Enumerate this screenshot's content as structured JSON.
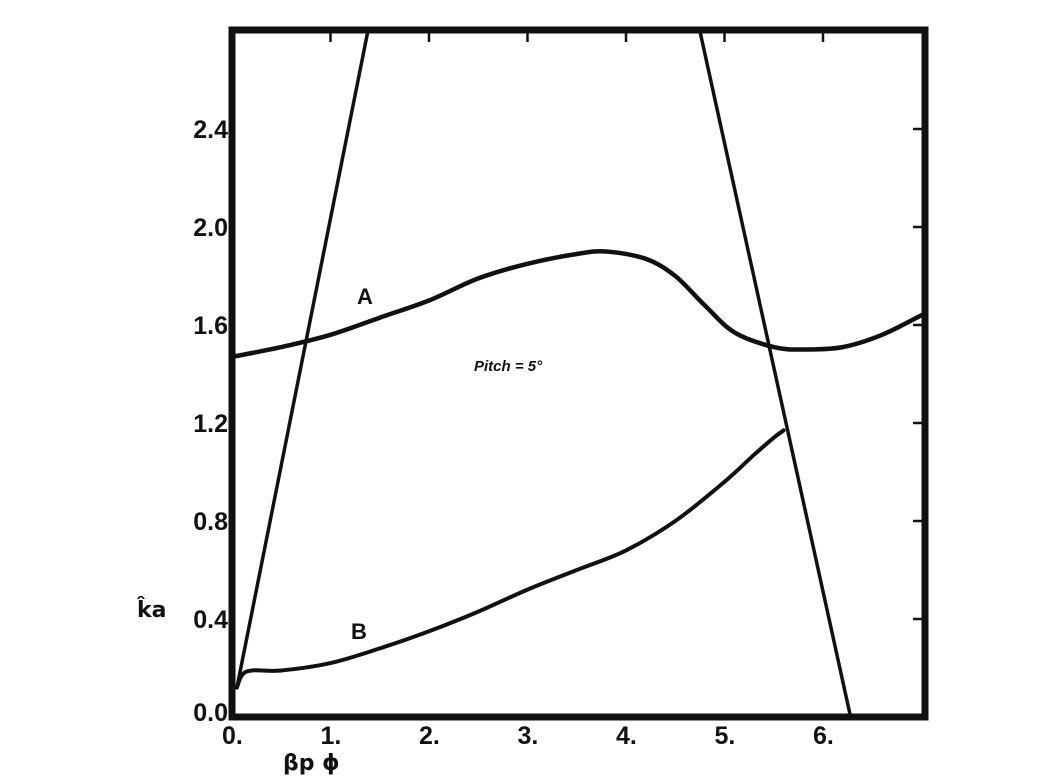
{
  "chart_data": {
    "type": "line",
    "title": "",
    "xlabel": "βp ɸ",
    "ylabel": "k̂a",
    "xlim": [
      0,
      7
    ],
    "ylim": [
      0,
      2.8
    ],
    "grid": false,
    "x_ticks": [
      0,
      1,
      2,
      3,
      4,
      5,
      6
    ],
    "x_tick_labels": [
      "0.",
      "1.",
      "2.",
      "3.",
      "4.",
      "5.",
      "6."
    ],
    "y_ticks": [
      0,
      0.4,
      0.8,
      1.2,
      1.6,
      2.0,
      2.4
    ],
    "y_tick_labels": [
      "0.0",
      "0.4",
      "0.8",
      "1.2",
      "1.6",
      "2.0",
      "2.4"
    ],
    "annotations": [
      "Pitch = 5°"
    ],
    "series": [
      {
        "name": "A",
        "style": "thick",
        "x": [
          0,
          0.5,
          1.0,
          1.5,
          2.0,
          2.5,
          3.0,
          3.5,
          3.8,
          4.2,
          4.5,
          4.8,
          5.1,
          5.5,
          5.8,
          6.2,
          6.6,
          7.0
        ],
        "y": [
          1.47,
          1.51,
          1.56,
          1.63,
          1.7,
          1.79,
          1.85,
          1.89,
          1.9,
          1.87,
          1.8,
          1.68,
          1.57,
          1.51,
          1.5,
          1.51,
          1.56,
          1.64
        ]
      },
      {
        "name": "B",
        "style": "medium",
        "x": [
          0.05,
          0.1,
          0.2,
          0.5,
          1.0,
          1.5,
          2.0,
          2.5,
          3.0,
          3.5,
          4.0,
          4.5,
          5.0,
          5.3,
          5.5,
          5.6
        ],
        "y": [
          0.12,
          0.17,
          0.19,
          0.19,
          0.22,
          0.28,
          0.35,
          0.43,
          0.52,
          0.6,
          0.68,
          0.8,
          0.96,
          1.07,
          1.14,
          1.17
        ]
      },
      {
        "name": "",
        "style": "line",
        "x": [
          0.05,
          1.38
        ],
        "y": [
          0.12,
          2.8
        ]
      },
      {
        "name": "",
        "style": "line",
        "x": [
          4.75,
          6.28
        ],
        "y": [
          2.8,
          0.0
        ]
      }
    ]
  }
}
